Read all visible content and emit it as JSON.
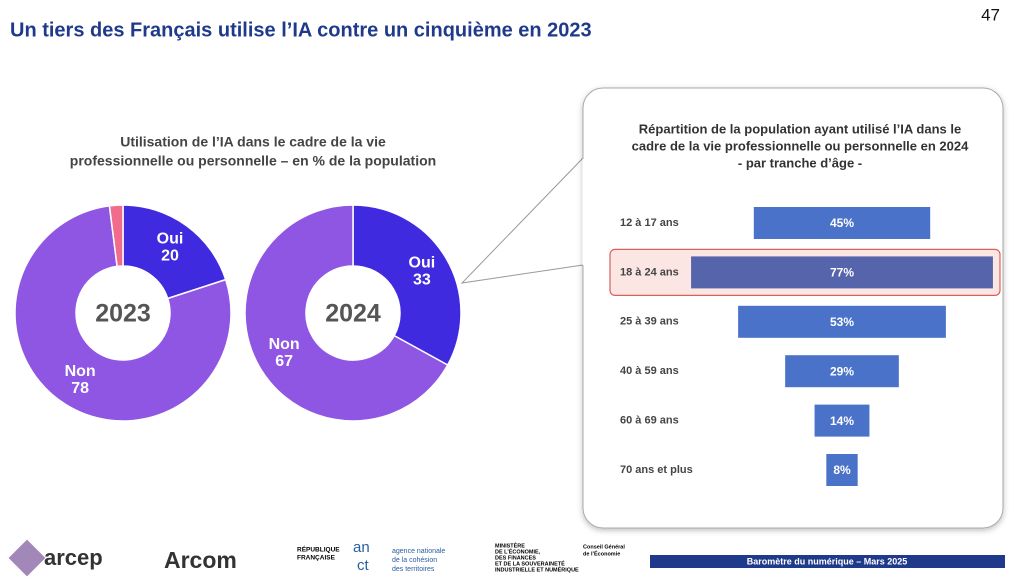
{
  "page_number": 47,
  "title": "Un tiers des Français utilise l’IA contre un cinquième en 2023",
  "donuts_title": [
    "Utilisation de l’IA dans le cadre de la vie",
    "professionnelle ou personnelle – en % de la population"
  ],
  "chart_data": [
    {
      "type": "donut",
      "center_label": "2023",
      "categories": [
        "Oui",
        "Non",
        null
      ],
      "values": [
        20,
        78,
        2
      ],
      "colors": [
        "#3f2ae0",
        "#8f56e3",
        "#f06b8c"
      ]
    },
    {
      "type": "donut",
      "center_label": "2024",
      "categories": [
        "Oui",
        "Non"
      ],
      "values": [
        33,
        67
      ],
      "colors": [
        "#3f2ae0",
        "#8f56e3"
      ]
    },
    {
      "type": "funnel-bar",
      "title": [
        "Répartition de la population ayant utilisé l’IA dans le",
        "cadre de la vie professionnelle ou personnelle en 2024",
        "- par tranche d’âge -"
      ],
      "categories": [
        "12 à 17 ans",
        "18 à 24 ans",
        "25 à 39 ans",
        "40 à 59 ans",
        "60 à 69 ans",
        "70 ans et plus"
      ],
      "values": [
        45,
        77,
        53,
        29,
        14,
        8
      ],
      "value_labels": [
        "45%",
        "77%",
        "53%",
        "29%",
        "14%",
        "8%"
      ],
      "color": "#4a72c9",
      "highlight": 1,
      "highlight_color": "#5664ab"
    }
  ],
  "footer": {
    "logos": [
      "arcep",
      "Arcom",
      "RÉPUBLIQUE",
      "FRANÇAISE",
      "an",
      "ct",
      "agence nationale",
      "de la cohésion",
      "des territoires",
      "MINISTÈRE",
      "DE L’ÉCONOMIE,",
      "DES FINANCES",
      "ET DE LA SOUVERAINETÉ",
      "INDUSTRIELLE ET NUMÉRIQUE",
      "Conseil Général",
      "de l’Économie"
    ],
    "banner": "Baromètre du numérique – Mars 2025"
  }
}
